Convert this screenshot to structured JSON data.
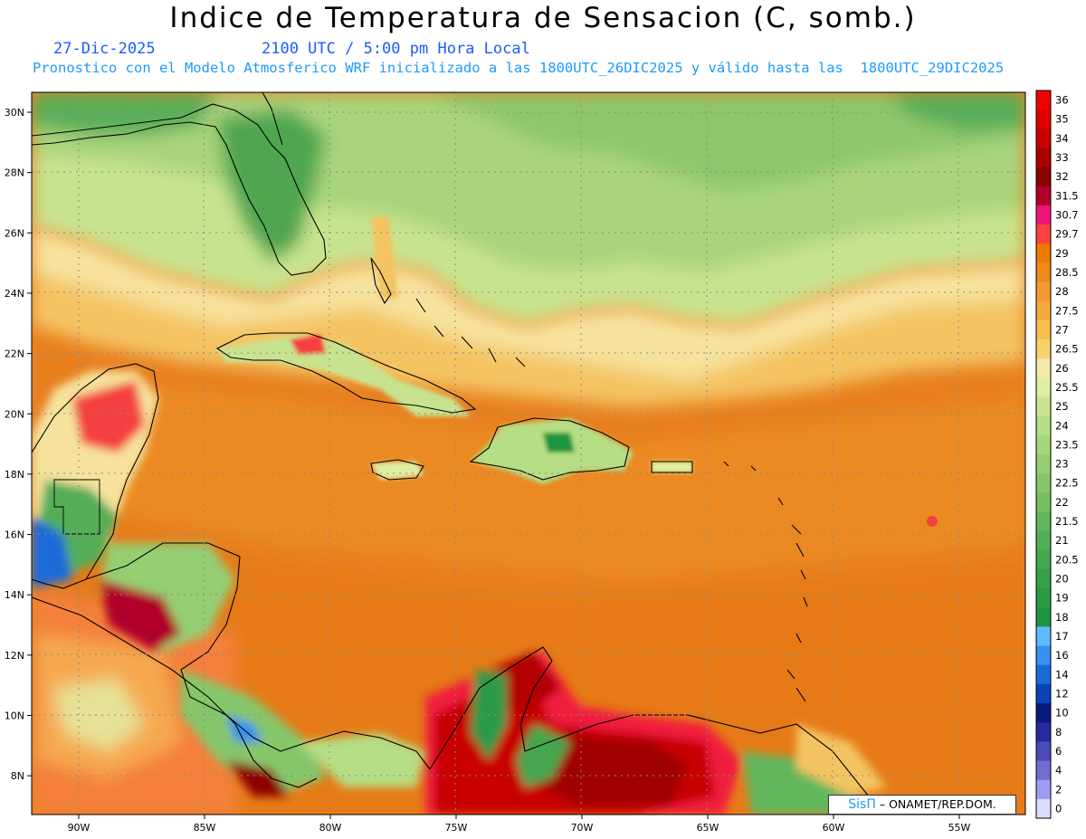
{
  "header": {
    "title": "Indice de Temperatura de Sensacion (C, somb.)",
    "date": "27-Dic-2025",
    "time": "2100 UTC / 5:00 pm Hora Local",
    "model_info": "Pronostico con el Modelo Atmosferico WRF inicializado a las 1800UTC_26DIC2025 y válido hasta las  1800UTC_29DIC2025"
  },
  "credit": {
    "brand": "SisΠ",
    "text": " – ONAMET/REP.DOM."
  },
  "axes": {
    "lat_labels": [
      "30N",
      "28N",
      "26N",
      "24N",
      "22N",
      "20N",
      "18N",
      "16N",
      "14N",
      "12N",
      "10N",
      "8N"
    ],
    "lon_labels": [
      "90W",
      "85W",
      "80W",
      "75W",
      "70W",
      "65W",
      "60W",
      "55W"
    ]
  },
  "colorbar": {
    "levels": [
      "36",
      "35",
      "34",
      "33",
      "32",
      "31.5",
      "30.7",
      "29.7",
      "29",
      "28.5",
      "28",
      "27.5",
      "27",
      "26.5",
      "26",
      "25.5",
      "25",
      "24",
      "23.5",
      "23",
      "22.5",
      "22",
      "21.5",
      "21",
      "20.5",
      "20",
      "19",
      "18",
      "17",
      "16",
      "14",
      "12",
      "10",
      "8",
      "6",
      "4",
      "2",
      "0"
    ],
    "colors": [
      "#f00000",
      "#e00000",
      "#c80000",
      "#aa0000",
      "#8c0000",
      "#b0002a",
      "#f0147a",
      "#ff4040",
      "#ec7a00",
      "#ee8a1a",
      "#f29a32",
      "#f6aa3e",
      "#f6be4e",
      "#f6d26e",
      "#f3e9a8",
      "#dfeea4",
      "#c8e692",
      "#b6de84",
      "#a6d67a",
      "#96ce72",
      "#86c66a",
      "#74be62",
      "#62b65c",
      "#52ae56",
      "#44a650",
      "#36a04c",
      "#2a9a46",
      "#1e9440",
      "#60b8ff",
      "#3890f0",
      "#1c6ad8",
      "#0a44b8",
      "#081a80",
      "#2828a0",
      "#4a4ab8",
      "#6e6ed0",
      "#9c9cf0",
      "#dcdcff"
    ]
  },
  "colors": {
    "ocean_base": "#e88020",
    "land_outline": "#000000",
    "grid": "#8a8a8a"
  }
}
